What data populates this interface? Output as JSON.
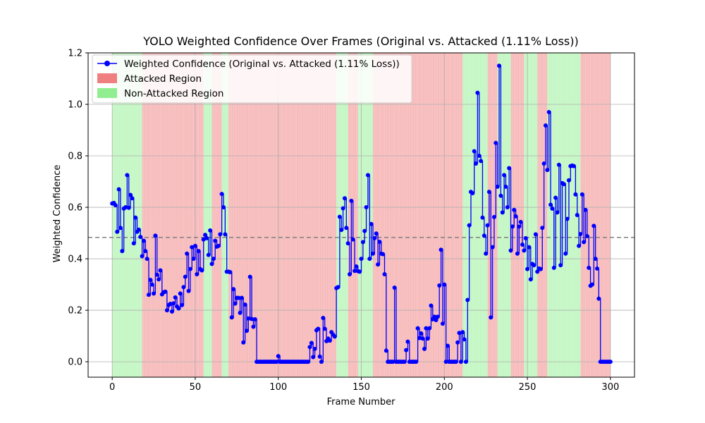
{
  "chart_data": {
    "type": "line",
    "title": "YOLO Weighted Confidence Over Frames (Original vs. Attacked (1.11% Loss))",
    "xlabel": "Frame Number",
    "ylabel": "Weighted Confidence",
    "xlim": [
      -14.5,
      314.5
    ],
    "ylim": [
      -0.06,
      1.2
    ],
    "xticks": [
      0,
      50,
      100,
      150,
      200,
      250,
      300
    ],
    "yticks": [
      0.0,
      0.2,
      0.4,
      0.6,
      0.8,
      1.0,
      1.2
    ],
    "ytick_labels": [
      "0.0",
      "0.2",
      "0.4",
      "0.6",
      "0.8",
      "1.0",
      "1.2"
    ],
    "grid": true,
    "legend_position": "upper-left",
    "reference_line": {
      "y": 0.483,
      "style": "dashed",
      "color": "#808080"
    },
    "series": [
      {
        "name": "Weighted Confidence (Original vs. Attacked (1.11% Loss))",
        "color": "#0000ff",
        "marker": "circle",
        "style": "step",
        "x_start": 0,
        "values": [
          0.615,
          0.617,
          0.608,
          0.505,
          0.67,
          0.52,
          0.43,
          0.595,
          0.6,
          0.725,
          0.598,
          0.648,
          0.635,
          0.46,
          0.56,
          0.505,
          0.513,
          0.485,
          0.41,
          0.47,
          0.43,
          0.4,
          0.26,
          0.318,
          0.3,
          0.265,
          0.49,
          0.338,
          0.32,
          0.355,
          0.262,
          0.27,
          0.272,
          0.2,
          0.22,
          0.225,
          0.195,
          0.227,
          0.25,
          0.215,
          0.207,
          0.265,
          0.22,
          0.29,
          0.33,
          0.42,
          0.275,
          0.36,
          0.445,
          0.4,
          0.45,
          0.34,
          0.43,
          0.36,
          0.355,
          0.475,
          0.493,
          0.48,
          0.415,
          0.51,
          0.38,
          0.4,
          0.47,
          0.447,
          0.45,
          0.495,
          0.652,
          0.6,
          0.495,
          0.35,
          0.35,
          0.348,
          0.172,
          0.282,
          0.226,
          0.248,
          0.248,
          0.19,
          0.248,
          0.075,
          0.222,
          0.12,
          0.168,
          0.33,
          0.166,
          0.136,
          0.165,
          0.0,
          0.0,
          0.0,
          0.0,
          0.0,
          0.0,
          0.0,
          0.0,
          0.0,
          0.0,
          0.0,
          0.0,
          0.0,
          0.022,
          0.0,
          0.0,
          0.0,
          0.0,
          0.0,
          0.0,
          0.0,
          0.0,
          0.0,
          0.0,
          0.0,
          0.0,
          0.0,
          0.0,
          0.0,
          0.0,
          0.0,
          0.0,
          0.057,
          0.073,
          0.018,
          0.05,
          0.122,
          0.128,
          0.02,
          0.0,
          0.17,
          0.128,
          0.08,
          0.09,
          0.082,
          0.115,
          0.105,
          0.098,
          0.286,
          0.29,
          0.563,
          0.512,
          0.596,
          0.635,
          0.52,
          0.46,
          0.34,
          0.625,
          0.475,
          0.353,
          0.37,
          0.352,
          0.35,
          0.4,
          0.465,
          0.508,
          0.6,
          0.725,
          0.4,
          0.535,
          0.42,
          0.48,
          0.498,
          0.378,
          0.466,
          0.42,
          0.418,
          0.34,
          0.043,
          0.0,
          0.0,
          0.0,
          0.0,
          0.288,
          0.0,
          0.0,
          0.0,
          0.0,
          0.0,
          0.0,
          0.045,
          0.078,
          0.0,
          0.0,
          0.0,
          0.0,
          0.0,
          0.13,
          0.092,
          0.11,
          0.09,
          0.05,
          0.13,
          0.09,
          0.13,
          0.218,
          0.165,
          0.175,
          0.162,
          0.175,
          0.296,
          0.435,
          0.148,
          0.3,
          0.0,
          0.062,
          0.0,
          0.0,
          0.0,
          0.0,
          0.0,
          0.075,
          0.112,
          0.0,
          0.115,
          0.087,
          0.0,
          0.24,
          0.53,
          0.66,
          0.655,
          0.818,
          0.77,
          1.045,
          0.8,
          0.78,
          0.56,
          0.49,
          0.42,
          0.53,
          0.66,
          0.172,
          0.445,
          0.562,
          0.85,
          0.68,
          1.15,
          0.645,
          0.58,
          0.725,
          0.68,
          0.6,
          0.752,
          0.432,
          0.525,
          0.59,
          0.565,
          0.42,
          0.525,
          0.543,
          0.455,
          0.432,
          0.48,
          0.36,
          0.445,
          0.32,
          0.38,
          0.375,
          0.495,
          0.35,
          0.362,
          0.36,
          0.52,
          0.77,
          0.918,
          0.745,
          0.97,
          0.61,
          0.595,
          0.365,
          0.637,
          0.58,
          0.765,
          0.375,
          0.694,
          0.69,
          0.42,
          0.555,
          0.705,
          0.76,
          0.762,
          0.76,
          0.65,
          0.57,
          0.45,
          0.496,
          0.65,
          0.465,
          0.59,
          0.488,
          0.365,
          0.295,
          0.3,
          0.528,
          0.4,
          0.362,
          0.245,
          0.0,
          0.0,
          0.0,
          0.0,
          0.0,
          0.0,
          0.0
        ]
      }
    ],
    "regions": {
      "attacked": {
        "name": "Attacked Region",
        "color": "#f08080"
      },
      "non_attacked": {
        "name": "Non-Attacked Region",
        "color": "#90ee90"
      },
      "segments": [
        {
          "start": 0,
          "end": 18,
          "type": "non_attacked"
        },
        {
          "start": 18,
          "end": 27,
          "type": "attacked"
        },
        {
          "start": 27,
          "end": 55,
          "type": "attacked"
        },
        {
          "start": 55,
          "end": 60,
          "type": "non_attacked"
        },
        {
          "start": 60,
          "end": 66,
          "type": "attacked"
        },
        {
          "start": 66,
          "end": 70,
          "type": "non_attacked"
        },
        {
          "start": 70,
          "end": 135,
          "type": "attacked"
        },
        {
          "start": 135,
          "end": 142,
          "type": "non_attacked"
        },
        {
          "start": 142,
          "end": 148,
          "type": "attacked"
        },
        {
          "start": 148,
          "end": 157,
          "type": "non_attacked"
        },
        {
          "start": 157,
          "end": 211,
          "type": "attacked"
        },
        {
          "start": 211,
          "end": 226,
          "type": "non_attacked"
        },
        {
          "start": 226,
          "end": 232,
          "type": "attacked"
        },
        {
          "start": 232,
          "end": 240,
          "type": "non_attacked"
        },
        {
          "start": 240,
          "end": 248,
          "type": "attacked"
        },
        {
          "start": 248,
          "end": 256,
          "type": "non_attacked"
        },
        {
          "start": 256,
          "end": 262,
          "type": "attacked"
        },
        {
          "start": 262,
          "end": 282,
          "type": "non_attacked"
        },
        {
          "start": 282,
          "end": 300,
          "type": "attacked"
        }
      ],
      "stripe_overlay": {
        "every": 1,
        "opacity": 0.35
      }
    }
  }
}
